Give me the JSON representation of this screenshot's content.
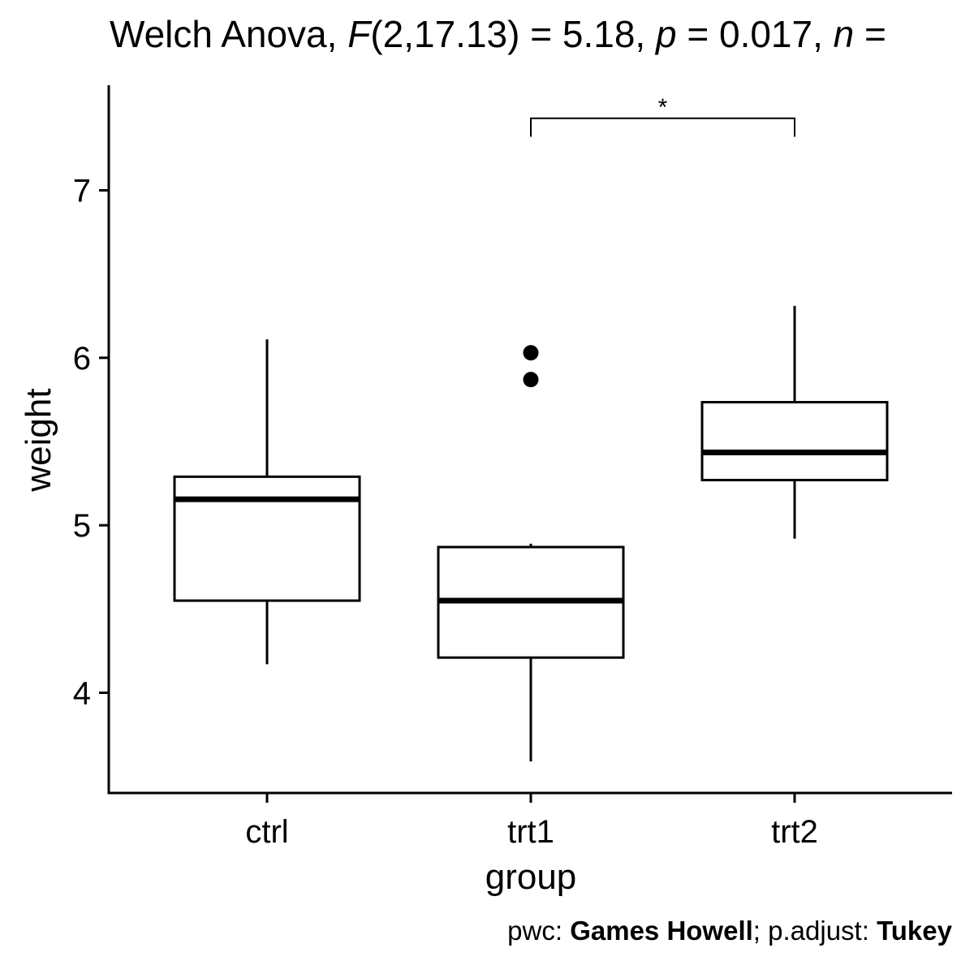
{
  "chart_data": {
    "type": "box",
    "title": {
      "prefix": "Welch Anova, ",
      "stat_symbol": "F",
      "stat_args": "(2,17.13)",
      "stat_value_text": " = 5.18, ",
      "p_symbol": "p",
      "p_value_text": " = 0.017, ",
      "n_symbol": "n",
      "n_value_text": " = "
    },
    "xlabel": "group",
    "ylabel": "weight",
    "ylim": [
      3.4,
      7.6
    ],
    "yticks": [
      4,
      5,
      6,
      7
    ],
    "categories": [
      "ctrl",
      "trt1",
      "trt2"
    ],
    "boxes": [
      {
        "category": "ctrl",
        "whisker_low": 4.17,
        "q1": 4.55,
        "median": 5.155,
        "q3": 5.29,
        "whisker_high": 6.11,
        "outliers": []
      },
      {
        "category": "trt1",
        "whisker_low": 3.59,
        "q1": 4.21,
        "median": 4.55,
        "q3": 4.87,
        "whisker_high": 4.89,
        "outliers": [
          6.03,
          5.87
        ]
      },
      {
        "category": "trt2",
        "whisker_low": 4.92,
        "q1": 5.27,
        "median": 5.435,
        "q3": 5.735,
        "whisker_high": 6.31,
        "outliers": []
      }
    ],
    "comparison": {
      "group1": "trt1",
      "group2": "trt2",
      "label": "*",
      "y": 7.43,
      "tip_y": 7.32
    },
    "caption": {
      "pwc_label": "pwc: ",
      "pwc_method": "Games Howell",
      "sep": "; p.adjust: ",
      "adjust_method": "Tukey"
    }
  }
}
